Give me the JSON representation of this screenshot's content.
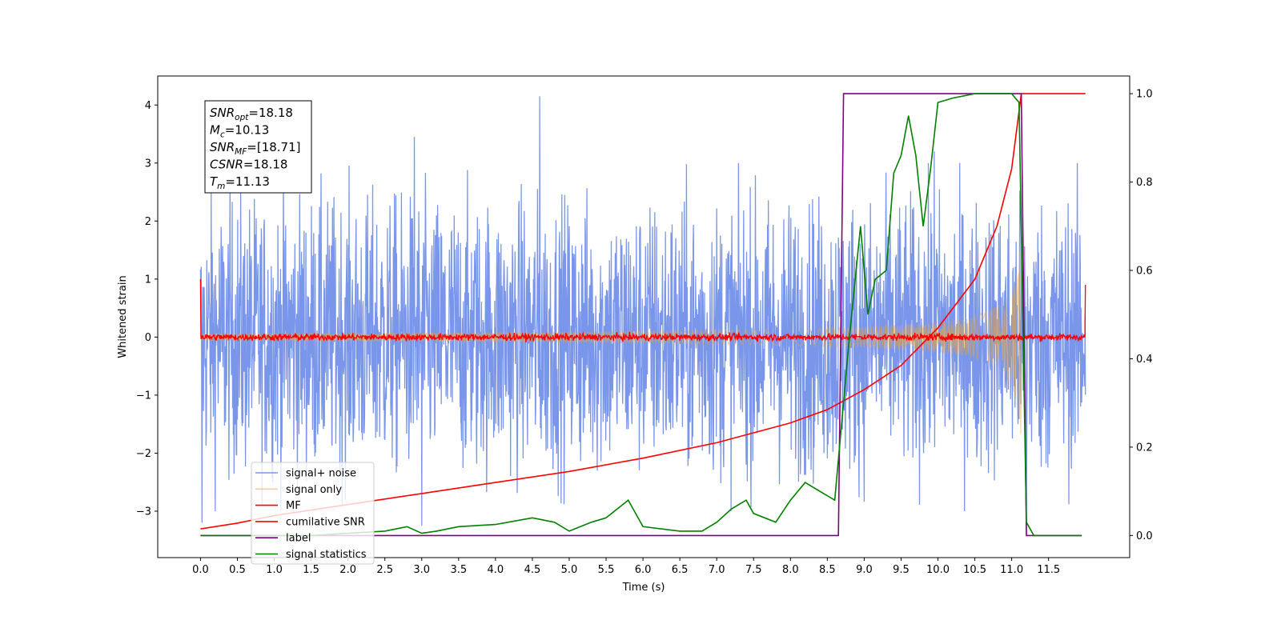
{
  "chart_data": {
    "type": "line",
    "title": "",
    "xlabel": "Time (s)",
    "ylabel": "Whitened strain",
    "y2label": "",
    "xlim": [
      -0.58,
      12.6
    ],
    "ylim": [
      -3.8,
      4.5
    ],
    "y2lim": [
      -0.05,
      1.04
    ],
    "xticks": [
      "0.0",
      "0.5",
      "1.0",
      "1.5",
      "2.0",
      "2.5",
      "3.0",
      "3.5",
      "4.0",
      "4.5",
      "5.0",
      "5.5",
      "6.0",
      "6.5",
      "7.0",
      "7.5",
      "8.0",
      "8.5",
      "9.0",
      "9.5",
      "10.0",
      "10.5",
      "11.0",
      "11.5"
    ],
    "yticks": [
      "4",
      "3",
      "2",
      "1",
      "0",
      "−1",
      "−2",
      "−3"
    ],
    "y2ticks": [
      "1.0",
      "0.8",
      "0.6",
      "0.4",
      "0.2",
      "0.0"
    ],
    "legend_position": "lower-left",
    "annotation_box": {
      "lines": [
        {
          "base": "SNR",
          "sub": "opt",
          "value": "=18.18"
        },
        {
          "base": "M",
          "sub": "c",
          "value": "=10.13"
        },
        {
          "base": "SNR",
          "sub": "MF",
          "value": "=[18.71]"
        },
        {
          "base": "CSNR",
          "sub": "",
          "value": "=18.18"
        },
        {
          "base": "T",
          "sub": "m",
          "value": "=11.13"
        }
      ]
    },
    "series": [
      {
        "name": "signal+ noise",
        "color": "#4169e1",
        "axis": "left",
        "style": "noise",
        "x_range": [
          0,
          12.0
        ],
        "amplitude": 2.3,
        "peaks": [
          [
            4.6,
            4.15
          ],
          [
            2.9,
            3.45
          ],
          [
            9.95,
            3.2
          ],
          [
            3.0,
            -3.25
          ],
          [
            11.2,
            -3.4
          ],
          [
            0.02,
            -3.2
          ]
        ]
      },
      {
        "name": "signal only",
        "color": "#f0a830",
        "axis": "left",
        "style": "chirp",
        "x_range": [
          0,
          11.13
        ],
        "end_amplitude": 1.9
      },
      {
        "name": "MF",
        "color": "#ff0000",
        "axis": "left",
        "style": "small-noise",
        "x_range": [
          0,
          12.0
        ],
        "amplitude": 0.06,
        "start_value": 1.0,
        "end_value": 0.9
      },
      {
        "name": "cumilative SNR",
        "color": "#ff0000",
        "axis": "right",
        "style": "line",
        "x": [
          0.0,
          0.5,
          1.0,
          2.0,
          3.0,
          4.0,
          5.0,
          6.0,
          7.0,
          8.0,
          8.5,
          9.0,
          9.5,
          10.0,
          10.5,
          10.8,
          11.0,
          11.13,
          12.0
        ],
        "values": [
          0.015,
          0.028,
          0.045,
          0.07,
          0.095,
          0.12,
          0.145,
          0.175,
          0.21,
          0.255,
          0.285,
          0.33,
          0.385,
          0.47,
          0.58,
          0.7,
          0.83,
          1.0,
          1.0
        ]
      },
      {
        "name": "label",
        "color": "#800080",
        "axis": "right",
        "style": "line",
        "x": [
          0.0,
          8.65,
          8.72,
          11.13,
          11.2,
          11.95
        ],
        "values": [
          0.0,
          0.0,
          1.0,
          1.0,
          0.0,
          0.0
        ]
      },
      {
        "name": "signal statistics",
        "color": "#008000",
        "axis": "right",
        "style": "line",
        "x": [
          0.0,
          0.5,
          1.0,
          1.5,
          2.0,
          2.5,
          2.8,
          3.0,
          3.2,
          3.5,
          4.0,
          4.5,
          4.8,
          5.0,
          5.3,
          5.5,
          5.8,
          6.0,
          6.5,
          6.8,
          7.0,
          7.2,
          7.4,
          7.5,
          7.8,
          8.0,
          8.2,
          8.4,
          8.6,
          8.8,
          8.95,
          9.05,
          9.15,
          9.3,
          9.4,
          9.5,
          9.6,
          9.7,
          9.8,
          9.9,
          10.0,
          10.2,
          10.5,
          11.0,
          11.1,
          11.2,
          11.3,
          11.95
        ],
        "values": [
          0.0,
          0.0,
          0.0,
          0.0,
          0.005,
          0.01,
          0.02,
          0.005,
          0.01,
          0.02,
          0.025,
          0.04,
          0.03,
          0.01,
          0.03,
          0.04,
          0.08,
          0.02,
          0.01,
          0.01,
          0.03,
          0.06,
          0.08,
          0.05,
          0.03,
          0.08,
          0.12,
          0.1,
          0.08,
          0.45,
          0.7,
          0.5,
          0.58,
          0.6,
          0.82,
          0.86,
          0.95,
          0.86,
          0.7,
          0.83,
          0.98,
          0.99,
          1.0,
          1.0,
          0.98,
          0.03,
          0.0,
          0.0
        ]
      }
    ]
  }
}
